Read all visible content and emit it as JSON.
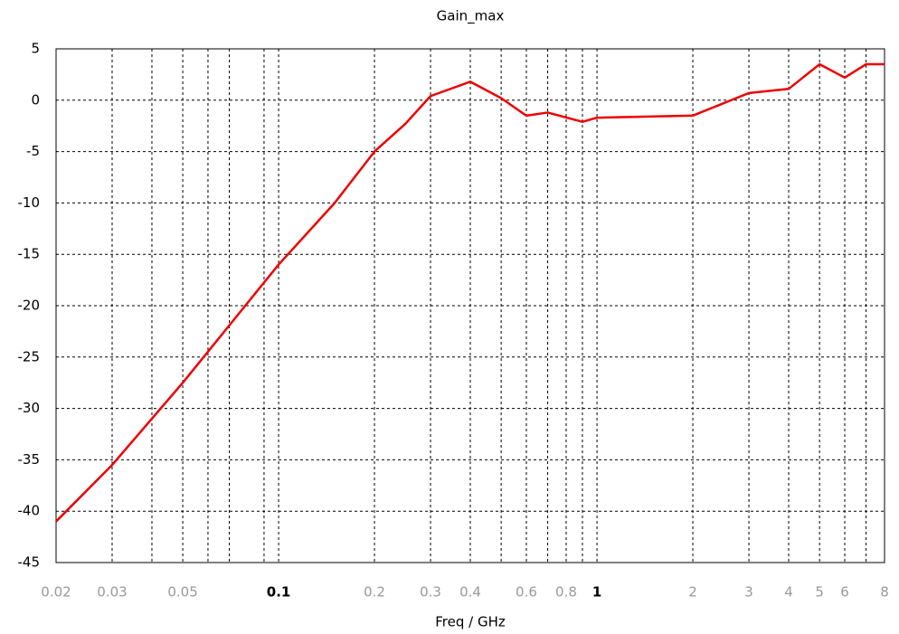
{
  "chart_data": {
    "type": "line",
    "title": "Gain_max",
    "x_label": "Freq / GHz",
    "x": [
      0.02,
      0.03,
      0.05,
      0.1,
      0.15,
      0.2,
      0.25,
      0.3,
      0.4,
      0.5,
      0.6,
      0.7,
      0.9,
      1,
      2,
      3,
      4,
      5,
      6,
      7,
      8
    ],
    "series": [
      {
        "color": "#ee0000",
        "values": [
          -41,
          -35.5,
          -27.5,
          -16,
          -10,
          -5,
          -2.3,
          0.4,
          1.8,
          0.2,
          -1.5,
          -1.2,
          -2.1,
          -1.7,
          -1.5,
          0.7,
          1.1,
          3.5,
          2.2,
          3.5,
          3.5
        ]
      }
    ],
    "xscale": "log",
    "xlim": [
      0.02,
      8
    ],
    "xticks": [
      0.02,
      0.03,
      0.05,
      0.1,
      0.2,
      0.3,
      0.4,
      0.6,
      0.8,
      1,
      2,
      3,
      4,
      5,
      6,
      8
    ],
    "x_minor_grid": [
      0.04,
      0.06,
      0.07,
      0.09,
      0.5,
      0.7,
      0.9,
      7
    ],
    "ylim": [
      -45,
      5
    ],
    "yticks": [
      -45,
      -40,
      -35,
      -30,
      -25,
      -20,
      -15,
      -10,
      -5,
      0,
      5
    ],
    "grid": true
  }
}
